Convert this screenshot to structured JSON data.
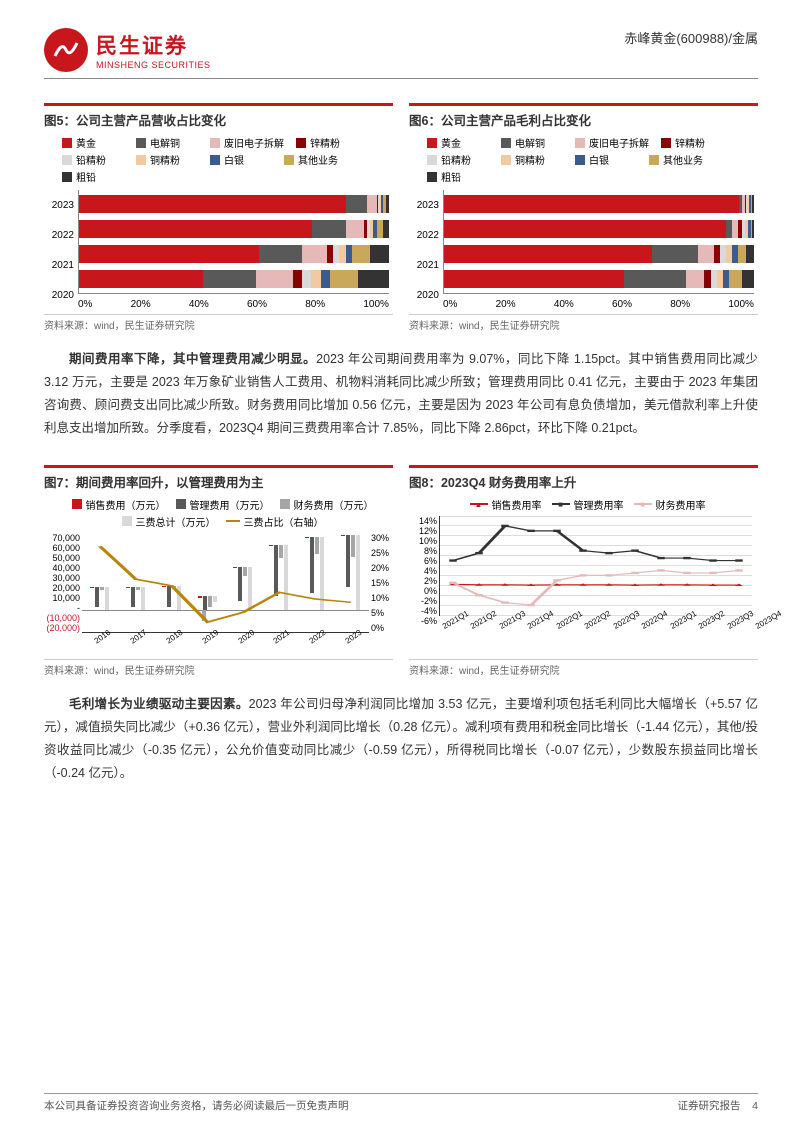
{
  "header": {
    "company_zh": "民生证券",
    "company_en": "MINSHENG SECURITIES",
    "ticker": "赤峰黄金(600988)/金属",
    "logo_color": "#c8161d"
  },
  "fig5": {
    "type": "stacked-bar-horizontal",
    "title": "图5：公司主营产品营收占比变化",
    "categories": [
      "2023",
      "2022",
      "2021",
      "2020"
    ],
    "series": [
      "黄金",
      "电解铜",
      "废旧电子拆解",
      "锌精粉",
      "铅精粉",
      "铜精粉",
      "白银",
      "其他业务",
      "粗铅"
    ],
    "colors": [
      "#c8161d",
      "#595959",
      "#e6b8b8",
      "#8b0000",
      "#d9d9d9",
      "#f2c9a0",
      "#3b5b8c",
      "#c9a85a",
      "#333333"
    ],
    "data": {
      "2023": [
        86,
        7,
        3,
        0.5,
        0.5,
        0.5,
        0.5,
        1,
        1
      ],
      "2022": [
        75,
        11,
        6,
        1,
        1,
        1,
        1,
        2,
        2
      ],
      "2021": [
        58,
        14,
        8,
        2,
        2,
        2,
        2,
        6,
        6
      ],
      "2020": [
        40,
        17,
        12,
        3,
        3,
        3,
        3,
        9,
        10
      ]
    },
    "xlabels": [
      "0%",
      "20%",
      "40%",
      "60%",
      "80%",
      "100%"
    ],
    "source": "资料来源：wind，民生证券研究院"
  },
  "fig6": {
    "type": "stacked-bar-horizontal",
    "title": "图6：公司主营产品毛利占比变化",
    "categories": [
      "2023",
      "2022",
      "2021",
      "2020"
    ],
    "series": [
      "黄金",
      "电解铜",
      "废旧电子拆解",
      "锌精粉",
      "铅精粉",
      "铜精粉",
      "白银",
      "其他业务",
      "粗铅"
    ],
    "colors": [
      "#c8161d",
      "#595959",
      "#e6b8b8",
      "#8b0000",
      "#d9d9d9",
      "#f2c9a0",
      "#3b5b8c",
      "#c9a85a",
      "#333333"
    ],
    "data": {
      "2023": [
        95,
        1,
        1,
        0.5,
        0.5,
        0.5,
        0.5,
        0.5,
        0.5
      ],
      "2022": [
        91,
        2,
        2,
        1,
        1,
        1,
        1,
        0.5,
        0.5
      ],
      "2021": [
        67,
        15,
        5,
        2,
        2,
        2,
        2,
        2.5,
        2.5
      ],
      "2020": [
        58,
        20,
        6,
        2,
        2,
        2,
        2,
        4,
        4
      ]
    },
    "xlabels": [
      "0%",
      "20%",
      "40%",
      "60%",
      "80%",
      "100%"
    ],
    "source": "资料来源：wind，民生证券研究院"
  },
  "para1": {
    "bold": "期间费用率下降，其中管理费用减少明显。",
    "text": "2023 年公司期间费用率为 9.07%，同比下降 1.15pct。其中销售费用同比减少 3.12 万元，主要是 2023 年万象矿业销售人工费用、机物料消耗同比减少所致；管理费用同比 0.41 亿元，主要由于 2023 年集团咨询费、顾问费支出同比减少所致。财务费用同比增加 0.56 亿元，主要是因为 2023 年公司有息负债增加，美元借款利率上升使利息支出增加所致。分季度看，2023Q4 期间三费费用率合计 7.85%，同比下降 2.86pct，环比下降 0.21pct。"
  },
  "fig7": {
    "type": "combo-bar-line",
    "title": "图7：期间费用率回升，以管理费用为主",
    "years": [
      "2016",
      "2017",
      "2018",
      "2019",
      "2020",
      "2021",
      "2022",
      "2023"
    ],
    "bar_series": [
      "销售费用（万元）",
      "管理费用（万元）",
      "财务费用（万元）",
      "三费总计（万元）"
    ],
    "bar_colors": [
      "#c8161d",
      "#595959",
      "#a6a6a6",
      "#d9d9d9"
    ],
    "line_series": "三费占比（右轴）",
    "line_color": "#b8860b",
    "bars": {
      "2016": [
        200,
        18000,
        2000,
        20000
      ],
      "2017": [
        200,
        18000,
        2000,
        20000
      ],
      "2018": [
        300,
        19000,
        1500,
        21000
      ],
      "2019": [
        2000,
        12000,
        -10000,
        5000
      ],
      "2020": [
        800,
        30000,
        8000,
        38000
      ],
      "2021": [
        600,
        46000,
        12000,
        58000
      ],
      "2022": [
        500,
        50000,
        15000,
        65000
      ],
      "2023": [
        450,
        47000,
        20000,
        67000
      ]
    },
    "line": [
      26,
      16,
      14,
      3,
      6,
      12,
      10,
      9
    ],
    "yl_ticks": [
      "70,000",
      "60,000",
      "50,000",
      "40,000",
      "30,000",
      "20,000",
      "10,000",
      "-",
      "(10,000)",
      "(20,000)"
    ],
    "yl_min": -20000,
    "yl_max": 70000,
    "yr_ticks": [
      "30%",
      "25%",
      "20%",
      "15%",
      "10%",
      "5%",
      "0%"
    ],
    "yr_max": 30,
    "source": "资料来源：wind，民生证券研究院"
  },
  "fig8": {
    "type": "line",
    "title": "图8：2023Q4 财务费用率上升",
    "quarters": [
      "2021Q1",
      "2021Q2",
      "2021Q3",
      "2021Q4",
      "2022Q1",
      "2022Q2",
      "2022Q3",
      "2022Q4",
      "2023Q1",
      "2023Q2",
      "2023Q3",
      "2023Q4"
    ],
    "series": [
      "销售费用率",
      "管理费用率",
      "财务费用率"
    ],
    "colors": [
      "#c8161d",
      "#333333",
      "#e6b8b8"
    ],
    "markers": [
      "triangle",
      "square",
      "square"
    ],
    "data": {
      "销售费用率": [
        0.2,
        0.1,
        0.1,
        0.05,
        0.1,
        0.1,
        0.1,
        0.05,
        0.1,
        0.1,
        0.05,
        0.05
      ],
      "管理费用率": [
        5,
        6.5,
        12,
        11,
        11,
        7,
        6.5,
        7,
        5.5,
        5.5,
        5,
        5
      ],
      "财务费用率": [
        0.5,
        -2,
        -3.5,
        -4,
        1,
        2,
        2,
        2.5,
        3,
        2.5,
        2.5,
        3
      ]
    },
    "y_ticks": [
      "14%",
      "12%",
      "10%",
      "8%",
      "6%",
      "4%",
      "2%",
      "0%",
      "-2%",
      "-4%",
      "-6%"
    ],
    "y_min": -6,
    "y_max": 14,
    "source": "资料来源：wind，民生证券研究院"
  },
  "para2": {
    "bold": "毛利增长为业绩驱动主要因素。",
    "text": "2023 年公司归母净利润同比增加 3.53 亿元，主要增利项包括毛利同比大幅增长（+5.57 亿元），减值损失同比减少（+0.36 亿元），营业外利润同比增长（0.28 亿元）。减利项有费用和税金同比增长（-1.44 亿元），其他/投资收益同比减少（-0.35 亿元），公允价值变动同比减少（-0.59 亿元），所得税同比增长（-0.07 亿元），少数股东损益同比增长（-0.24 亿元）。"
  },
  "footer": {
    "left": "本公司具备证券投资咨询业务资格，请务必阅读最后一页免责声明",
    "right_label": "证券研究报告",
    "page": "4"
  }
}
